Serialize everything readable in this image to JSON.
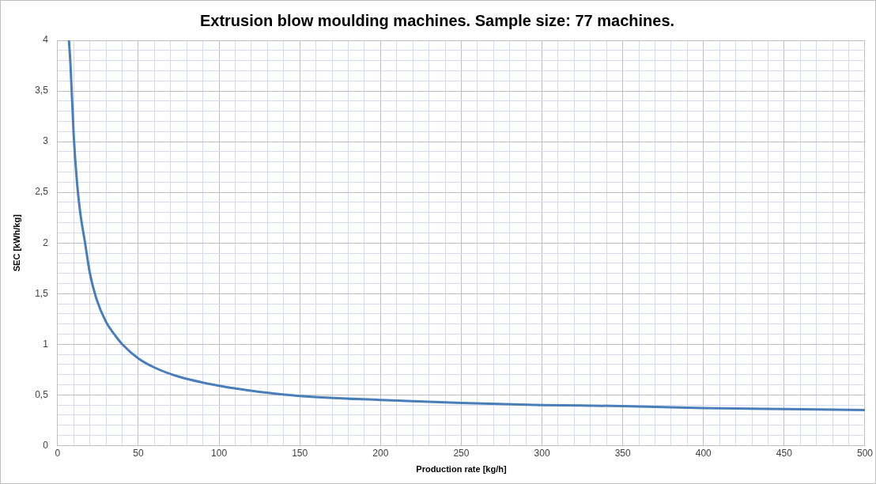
{
  "chart_data": {
    "type": "line",
    "title": "Extrusion blow moulding machines. Sample size: 77 machines.",
    "xlabel": "Production rate [kg/h]",
    "ylabel": "SEC [kWh/kg]",
    "x": [
      7,
      8,
      10,
      12,
      14,
      17,
      20,
      24,
      30,
      35,
      40,
      50,
      60,
      75,
      100,
      125,
      150,
      200,
      250,
      300,
      350,
      400,
      450,
      500
    ],
    "series": [
      {
        "color": "#4a7ebb",
        "values": [
          4.0,
          3.75,
          3.05,
          2.6,
          2.3,
          2.0,
          1.7,
          1.45,
          1.22,
          1.1,
          1.0,
          0.86,
          0.77,
          0.68,
          0.59,
          0.53,
          0.49,
          0.45,
          0.42,
          0.4,
          0.39,
          0.37,
          0.36,
          0.35
        ]
      }
    ],
    "xlim": [
      0,
      500
    ],
    "xticks": [
      0,
      {
        "value": 10,
        "label": null
      },
      {
        "value": 20,
        "label": null
      },
      {
        "value": 30,
        "label": null
      },
      {
        "value": 40,
        "label": null
      },
      50,
      {
        "value": 60,
        "label": null
      },
      {
        "value": 70,
        "label": null
      },
      {
        "value": 80,
        "label": null
      },
      {
        "value": 90,
        "label": null
      },
      100,
      {
        "value": 110,
        "label": null
      },
      {
        "value": 120,
        "label": null
      },
      {
        "value": 130,
        "label": null
      },
      {
        "value": 140,
        "label": null
      },
      150,
      {
        "value": 160,
        "label": null
      },
      {
        "value": 170,
        "label": null
      },
      {
        "value": 180,
        "label": null
      },
      {
        "value": 190,
        "label": null
      },
      200,
      {
        "value": 210,
        "label": null
      },
      {
        "value": 220,
        "label": null
      },
      {
        "value": 230,
        "label": null
      },
      {
        "value": 240,
        "label": null
      },
      250,
      {
        "value": 260,
        "label": null
      },
      {
        "value": 270,
        "label": null
      },
      {
        "value": 280,
        "label": null
      },
      {
        "value": 290,
        "label": null
      },
      300,
      {
        "value": 310,
        "label": null
      },
      {
        "value": 320,
        "label": null
      },
      {
        "value": 330,
        "label": null
      },
      {
        "value": 340,
        "label": null
      },
      350,
      {
        "value": 360,
        "label": null
      },
      {
        "value": 370,
        "label": null
      },
      {
        "value": 380,
        "label": null
      },
      {
        "value": 390,
        "label": null
      },
      400,
      {
        "value": 410,
        "label": null
      },
      {
        "value": 420,
        "label": null
      },
      {
        "value": 430,
        "label": null
      },
      {
        "value": 440,
        "label": null
      },
      450,
      {
        "value": 460,
        "label": null
      },
      {
        "value": 470,
        "label": null
      },
      {
        "value": 480,
        "label": null
      },
      {
        "value": 490,
        "label": null
      },
      500
    ],
    "ylim": [
      0,
      4
    ],
    "yticks": [
      0,
      {
        "value": 0.1,
        "label": null
      },
      {
        "value": 0.2,
        "label": null
      },
      {
        "value": 0.3,
        "label": null
      },
      {
        "value": 0.4,
        "label": null
      },
      {
        "value": 0.5,
        "label": "0,5"
      },
      {
        "value": 0.6,
        "label": null
      },
      {
        "value": 0.7,
        "label": null
      },
      {
        "value": 0.8,
        "label": null
      },
      {
        "value": 0.9,
        "label": null
      },
      1,
      {
        "value": 1.1,
        "label": null
      },
      {
        "value": 1.2,
        "label": null
      },
      {
        "value": 1.3,
        "label": null
      },
      {
        "value": 1.4,
        "label": null
      },
      {
        "value": 1.5,
        "label": "1,5"
      },
      {
        "value": 1.6,
        "label": null
      },
      {
        "value": 1.7,
        "label": null
      },
      {
        "value": 1.8,
        "label": null
      },
      {
        "value": 1.9,
        "label": null
      },
      2,
      {
        "value": 2.1,
        "label": null
      },
      {
        "value": 2.2,
        "label": null
      },
      {
        "value": 2.3,
        "label": null
      },
      {
        "value": 2.4,
        "label": null
      },
      {
        "value": 2.5,
        "label": "2,5"
      },
      {
        "value": 2.6,
        "label": null
      },
      {
        "value": 2.7,
        "label": null
      },
      {
        "value": 2.8,
        "label": null
      },
      {
        "value": 2.9,
        "label": null
      },
      3,
      {
        "value": 3.1,
        "label": null
      },
      {
        "value": 3.2,
        "label": null
      },
      {
        "value": 3.3,
        "label": null
      },
      {
        "value": 3.4,
        "label": null
      },
      {
        "value": 3.5,
        "label": "3,5"
      },
      {
        "value": 3.6,
        "label": null
      },
      {
        "value": 3.7,
        "label": null
      },
      {
        "value": 3.8,
        "label": null
      },
      {
        "value": 3.9,
        "label": null
      },
      4
    ],
    "grid": true,
    "marker": "none",
    "line_style": "solid",
    "legend": false
  }
}
